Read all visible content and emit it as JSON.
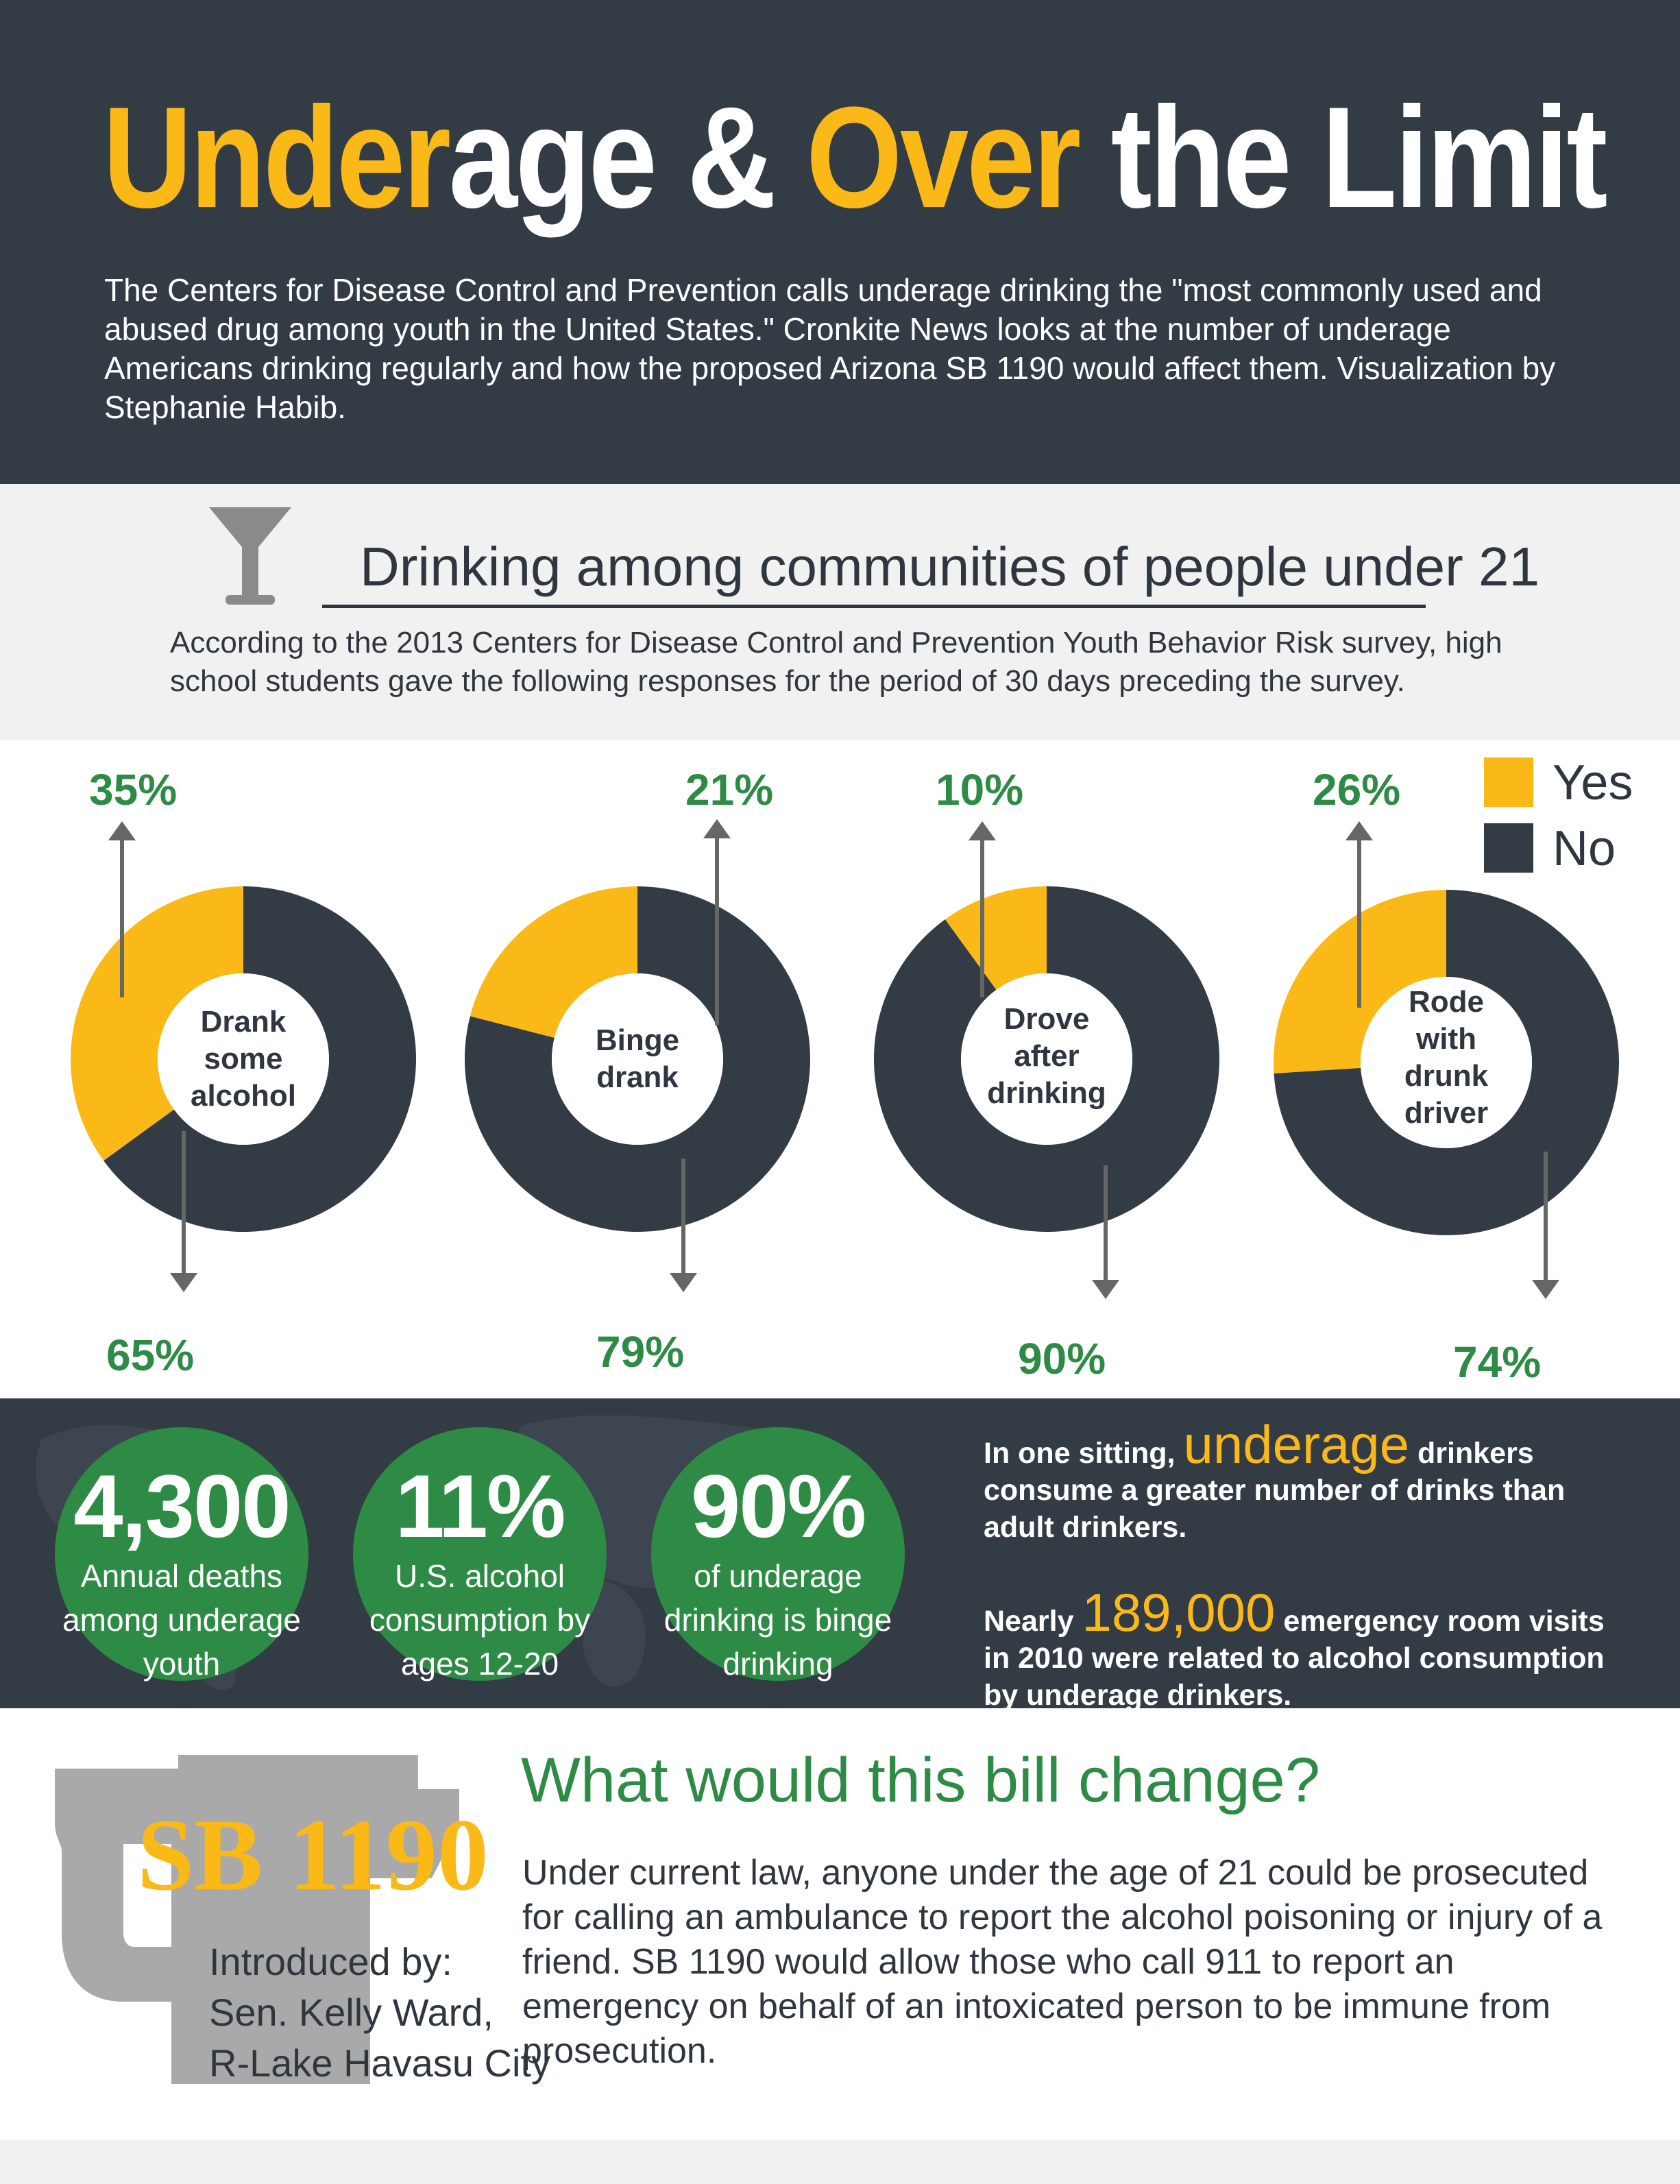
{
  "header": {
    "title_part1": "Under",
    "title_part2": "age & ",
    "title_part3": "Over",
    "title_part4": " the Limit",
    "intro": "The Centers for Disease Control and Prevention calls underage drinking the \"most commonly used and abused drug among youth in the United States.\" Cronkite News looks at the number of underage Americans drinking regularly and how the proposed Arizona SB 1190 would affect them. Visualization by Stephanie Habib."
  },
  "section2": {
    "title": "Drinking among communities of people under 21",
    "description": "According to the 2013 Centers for Disease Control and Prevention Youth Behavior Risk survey, high school students gave the following responses for the period of 30 days preceding the survey."
  },
  "colors": {
    "yes": "#fbb917",
    "no": "#333b45",
    "green": "#2e8b45",
    "dark": "#333b45"
  },
  "chart_data": {
    "type": "pie",
    "subtype": "donut",
    "legend": [
      "Yes",
      "No"
    ],
    "legend_position": "top-right",
    "charts": [
      {
        "label": "Drank some alcohol",
        "yes": 35,
        "no": 65,
        "yes_label": "35%",
        "no_label": "65%"
      },
      {
        "label": "Binge drank",
        "yes": 21,
        "no": 79,
        "yes_label": "21%",
        "no_label": "79%"
      },
      {
        "label": "Drove after drinking",
        "yes": 10,
        "no": 90,
        "yes_label": "10%",
        "no_label": "90%"
      },
      {
        "label": "Rode with drunk driver",
        "yes": 26,
        "no": 74,
        "yes_label": "26%",
        "no_label": "74%"
      }
    ]
  },
  "stats": {
    "circles": [
      {
        "big": "4,300",
        "line1": "Annual deaths",
        "line2": "among underage",
        "line3": "youth"
      },
      {
        "big": "11%",
        "line1": "U.S. alcohol",
        "line2": "consumption by",
        "line3": "ages 12-20"
      },
      {
        "big": "90%",
        "line1": "of underage",
        "line2": "drinking is binge",
        "line3": "drinking"
      }
    ],
    "fact1_pre": "In one sitting, ",
    "fact1_hl": "underage",
    "fact1_post": " drinkers consume a greater number of drinks than adult drinkers.",
    "fact2_pre": "Nearly ",
    "fact2_hl": "189,000",
    "fact2_post": " emergency room visits in 2010 were related to alcohol consumption by underage drinkers."
  },
  "bill": {
    "sb": "SB 1190",
    "introduced_line1": "Introduced by:",
    "introduced_line2": "Sen. Kelly Ward,",
    "introduced_line3": "R-Lake Havasu City",
    "title": "What would this bill change?",
    "text": "Under current law, anyone under the age of 21 could be prosecuted for calling an ambulance to report the alcohol poisoning or injury of a friend. SB 1190 would allow those who call 911 to report an emergency on behalf of an intoxicated person to be immune from prosecution."
  }
}
